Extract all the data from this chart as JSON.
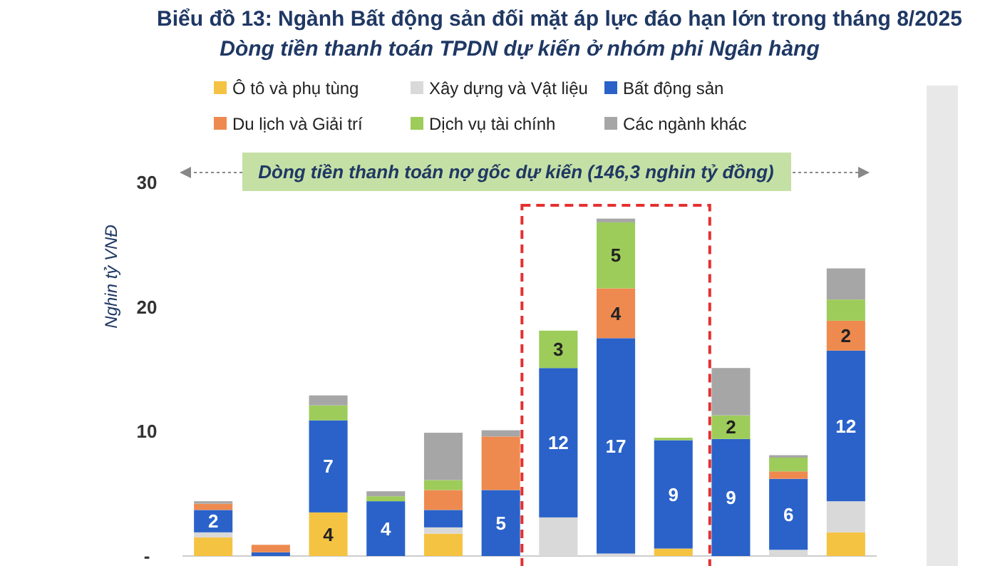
{
  "chart_data": {
    "type": "bar",
    "stacked": true,
    "title": "Biểu đồ 13: Ngành Bất động sản đối mặt áp lực đáo hạn lớn trong tháng 8/2025",
    "subtitle": "Dòng tiền thanh toán TPDN dự kiến ở nhóm phi Ngân hàng",
    "ylabel": "Nghin tỷ VNĐ",
    "annotations": [
      "Dòng tiền thanh toán nợ gốc dự kiến (146,3 nghin tỷ đồng)"
    ],
    "categories": [
      null,
      null,
      null,
      null,
      null,
      null,
      null,
      null,
      null,
      null,
      null,
      null
    ],
    "ylim": [
      0,
      30
    ],
    "yticks": [
      {
        "value": 0,
        "label": "-"
      },
      10,
      20,
      30
    ],
    "grid": false,
    "legend": "top",
    "series": [
      {
        "name": "Ô tô và phụ tùng",
        "color": "#f5c342",
        "values": [
          1.5,
          0,
          3.5,
          0,
          1.8,
          0,
          0,
          0,
          0.6,
          0,
          0,
          1.9
        ],
        "value_labels": [
          null,
          null,
          "4",
          null,
          null,
          null,
          null,
          null,
          null,
          null,
          null,
          null
        ]
      },
      {
        "name": "Xây dựng và Vật liệu",
        "color": "#d9d9d9",
        "values": [
          0.4,
          0,
          0,
          0,
          0.5,
          0,
          3.1,
          0.2,
          0,
          0,
          0.5,
          2.5
        ],
        "value_labels": [
          null,
          null,
          null,
          null,
          null,
          null,
          null,
          null,
          null,
          null,
          null,
          null
        ]
      },
      {
        "name": "Bất động sản",
        "color": "#2a62c9",
        "values": [
          1.8,
          0.3,
          7.4,
          4.4,
          1.4,
          5.3,
          12.0,
          17.3,
          8.7,
          9.4,
          5.7,
          12.1
        ],
        "value_labels": [
          "2",
          null,
          "7",
          "4",
          null,
          "5",
          "12",
          "17",
          "9",
          "9",
          "6",
          "12"
        ]
      },
      {
        "name": "Du lịch và Giải trí",
        "color": "#ee8a4f",
        "values": [
          0.5,
          0.6,
          0,
          0,
          1.6,
          4.3,
          0,
          4.0,
          0,
          0,
          0.6,
          2.4
        ],
        "value_labels": [
          null,
          null,
          null,
          null,
          null,
          null,
          null,
          "4",
          null,
          null,
          null,
          "2"
        ]
      },
      {
        "name": "Dịch vụ tài chính",
        "color": "#9dcc5a",
        "values": [
          0,
          0,
          1.2,
          0.4,
          0.8,
          0,
          3.0,
          5.3,
          0.2,
          1.9,
          1.1,
          1.7
        ],
        "value_labels": [
          null,
          null,
          null,
          null,
          null,
          null,
          "3",
          "5",
          null,
          "2",
          null,
          null
        ]
      },
      {
        "name": "Các ngành khác",
        "color": "#a6a6a6",
        "values": [
          0.2,
          0,
          0.8,
          0.4,
          3.8,
          0.5,
          0,
          0.3,
          0,
          3.8,
          0.2,
          2.5
        ],
        "value_labels": [
          null,
          null,
          null,
          null,
          null,
          null,
          null,
          null,
          null,
          null,
          null,
          null
        ]
      }
    ]
  }
}
